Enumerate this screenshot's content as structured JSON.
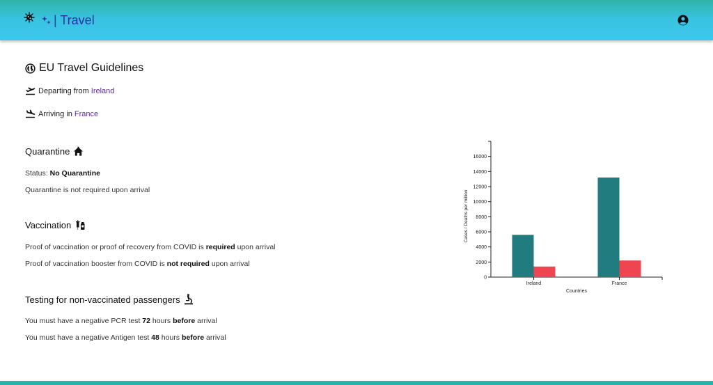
{
  "header": {
    "brand": "| Travel"
  },
  "page": {
    "title": "EU Travel Guidelines",
    "departing_label": "Departing from",
    "departing_country": "Ireland",
    "arriving_label": "Arriving in",
    "arriving_country": "France"
  },
  "quarantine": {
    "title": "Quarantine",
    "status_label": "Status:",
    "status_value": "No Quarantine",
    "note": "Quarantine is not required upon arrival"
  },
  "vaccination": {
    "title": "Vaccination",
    "proof_pre": "Proof of vaccination or proof of recovery from COVID is",
    "proof_bold": "required",
    "proof_post": "upon arrival",
    "booster_pre": "Proof of vaccination booster from COVID is",
    "booster_bold": "not required",
    "booster_post": "upon arrival"
  },
  "testing": {
    "title": "Testing for non-vaccinated passengers",
    "pcr_pre": "You must have a negative PCR test",
    "pcr_hours": "72",
    "pcr_mid": "hours",
    "pcr_bold": "before",
    "pcr_post": "arrival",
    "antigen_pre": "You must have a negative Antigen test",
    "antigen_hours": "48",
    "antigen_mid": "hours",
    "antigen_bold": "before",
    "antigen_post": "arrival"
  },
  "colors": {
    "cases": "#217c80",
    "deaths": "#ef4550",
    "link": "#5a2b9a"
  },
  "icons": {
    "header_left": "virus-icon",
    "brand": "sparkle-icon",
    "account": "account-circle-icon",
    "title": "globe-icon",
    "departing": "flight-takeoff-icon",
    "arriving": "flight-land-icon",
    "quarantine": "house-icon",
    "vaccination": "vaccine-icon",
    "testing": "microscope-icon"
  },
  "chart_data": {
    "type": "bar",
    "categories": [
      "Ireland",
      "France"
    ],
    "series": [
      {
        "values": [
          5600,
          13200
        ]
      },
      {
        "values": [
          1400,
          2200
        ]
      }
    ],
    "xlabel": "Countries",
    "ylabel": "Cases / Deaths per million",
    "ylim": [
      0,
      18000
    ],
    "yticks": [
      0,
      2000,
      4000,
      6000,
      8000,
      10000,
      12000,
      14000,
      16000
    ],
    "grid": false
  }
}
